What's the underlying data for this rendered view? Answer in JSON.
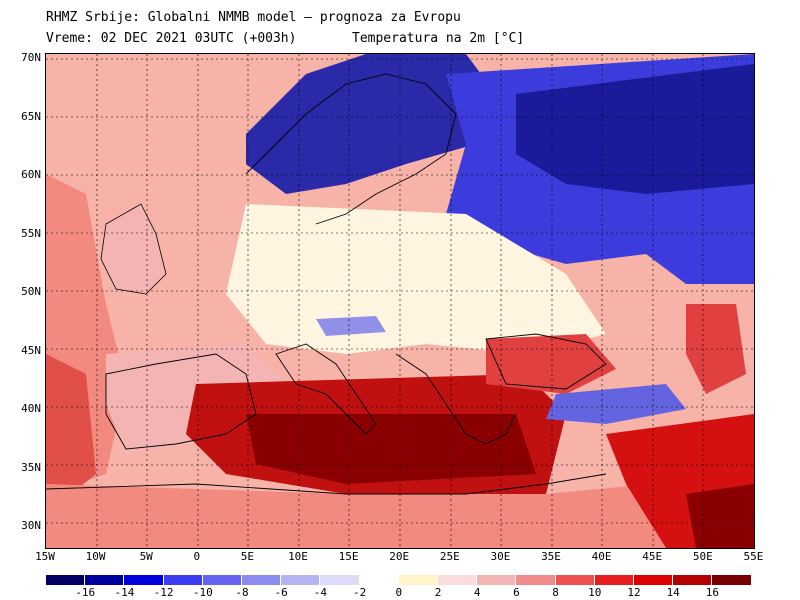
{
  "header": {
    "line1": "RHMZ Srbije: Globalni NMMB model — prognoza za Evropu",
    "line2a": "Vreme: 02 DEC 2021 03UTC (+003h)",
    "line2b": "Temperatura na 2m [°C]"
  },
  "axes": {
    "lat_labels": [
      "70N",
      "65N",
      "60N",
      "55N",
      "50N",
      "45N",
      "40N",
      "35N",
      "30N"
    ],
    "lon_labels": [
      "15W",
      "10W",
      "5W",
      "0",
      "5E",
      "10E",
      "15E",
      "20E",
      "25E",
      "30E",
      "35E",
      "40E",
      "45E",
      "50E",
      "55E"
    ]
  },
  "legend": {
    "labels": [
      "-16",
      "-14",
      "-12",
      "-10",
      "-8",
      "-6",
      "-4",
      "-2",
      "0",
      "2",
      "4",
      "6",
      "8",
      "10",
      "12",
      "14",
      "16"
    ],
    "colors": [
      "#000064",
      "#0000a0",
      "#0000dc",
      "#3c3cf0",
      "#6464f0",
      "#8c8cf0",
      "#b4b4f0",
      "#dcdcf8",
      "#ffffff",
      "#fff5c8",
      "#fadcdc",
      "#f5b4b4",
      "#f08c8c",
      "#f05050",
      "#e61e1e",
      "#dc0000",
      "#b40000",
      "#780000"
    ]
  },
  "map_colors": {
    "ocean_warm": "#f7b3a8",
    "cold_deep": "#0a0a80",
    "cold": "#3c3cdc",
    "cool": "#9090e8",
    "neutral": "#fff5e0",
    "warm": "#f28a80",
    "hot": "#d41010",
    "very_hot": "#8a0000"
  }
}
